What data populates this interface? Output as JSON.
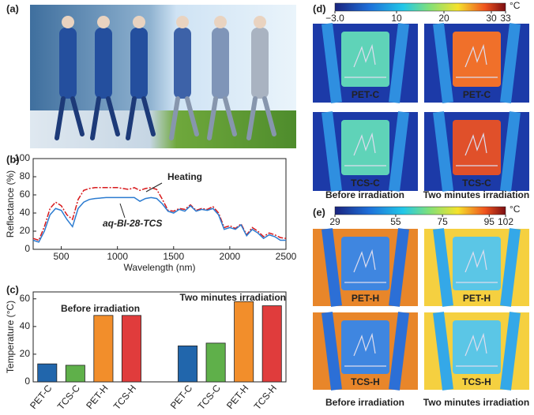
{
  "photo": {
    "label": "(a)"
  },
  "chart_data": [
    {
      "type": "line",
      "label": "(b)",
      "xlabel": "Wavelength (nm)",
      "ylabel": "Reflectance (%)",
      "xlim": [
        250,
        2500
      ],
      "ylim": [
        0,
        100
      ],
      "xticks": [
        500,
        1000,
        1500,
        2000,
        2500
      ],
      "yticks": [
        0,
        20,
        40,
        60,
        80,
        100
      ],
      "annotations": [
        "Heating",
        "aq-BI-28-TCS"
      ],
      "x": [
        250,
        300,
        350,
        400,
        450,
        500,
        550,
        600,
        650,
        700,
        750,
        800,
        900,
        1000,
        1100,
        1150,
        1200,
        1250,
        1300,
        1350,
        1400,
        1450,
        1500,
        1550,
        1600,
        1650,
        1700,
        1750,
        1800,
        1850,
        1900,
        1950,
        2000,
        2050,
        2100,
        2150,
        2200,
        2250,
        2300,
        2350,
        2400,
        2450,
        2500
      ],
      "series": [
        {
          "color": "#d7191c",
          "dash": true,
          "values": [
            12,
            10,
            25,
            45,
            52,
            48,
            38,
            33,
            55,
            65,
            67,
            68,
            68,
            68,
            66,
            68,
            65,
            67,
            68,
            66,
            55,
            43,
            42,
            45,
            44,
            49,
            43,
            45,
            44,
            47,
            40,
            24,
            26,
            23,
            28,
            16,
            24,
            20,
            14,
            18,
            16,
            13,
            12
          ]
        },
        {
          "color": "#2b7bd0",
          "dash": false,
          "values": [
            10,
            8,
            20,
            38,
            45,
            43,
            33,
            25,
            45,
            52,
            55,
            56,
            57,
            57,
            57,
            57,
            53,
            56,
            57,
            56,
            50,
            42,
            40,
            44,
            42,
            48,
            42,
            44,
            43,
            45,
            38,
            22,
            24,
            22,
            27,
            15,
            22,
            18,
            12,
            16,
            14,
            10,
            10
          ]
        }
      ]
    },
    {
      "type": "bar",
      "label": "(c)",
      "ylabel": "Temperature (°C)",
      "ylim": [
        0,
        65
      ],
      "yticks": [
        0,
        20,
        40,
        60
      ],
      "annotations": [
        "Before irradiation",
        "Two minutes irradiation"
      ],
      "categories": [
        "PET-C",
        "TCS-C",
        "PET-H",
        "TCS-H",
        "PET-C",
        "TCS-C",
        "PET-H",
        "TCS-H"
      ],
      "values": [
        13,
        12,
        48,
        48,
        26,
        28,
        58,
        55
      ],
      "colors": [
        "#2166ac",
        "#5fb04a",
        "#f28e2b",
        "#e03c3c",
        "#2166ac",
        "#5fb04a",
        "#f28e2b",
        "#e03c3c"
      ]
    }
  ],
  "thermal": [
    {
      "label": "(d)",
      "unit": "°C",
      "range": [
        -3.0,
        33
      ],
      "ticks": [
        {
          "value": -3.0,
          "label": "−3.0"
        },
        10,
        20,
        30,
        33
      ],
      "images": [
        "PET-C",
        "PET-C",
        "TCS-C",
        "TCS-C"
      ],
      "captions": [
        "Before irradiation",
        "Two minutes irradiation"
      ]
    },
    {
      "label": "(e)",
      "unit": "°C",
      "range": [
        29,
        102
      ],
      "ticks": [
        29,
        55,
        75,
        95,
        102
      ],
      "images": [
        "PET-H",
        "PET-H",
        "TCS-H",
        "TCS-H"
      ],
      "captions": [
        "Before irradiation",
        "Two minutes irradiation"
      ]
    }
  ]
}
